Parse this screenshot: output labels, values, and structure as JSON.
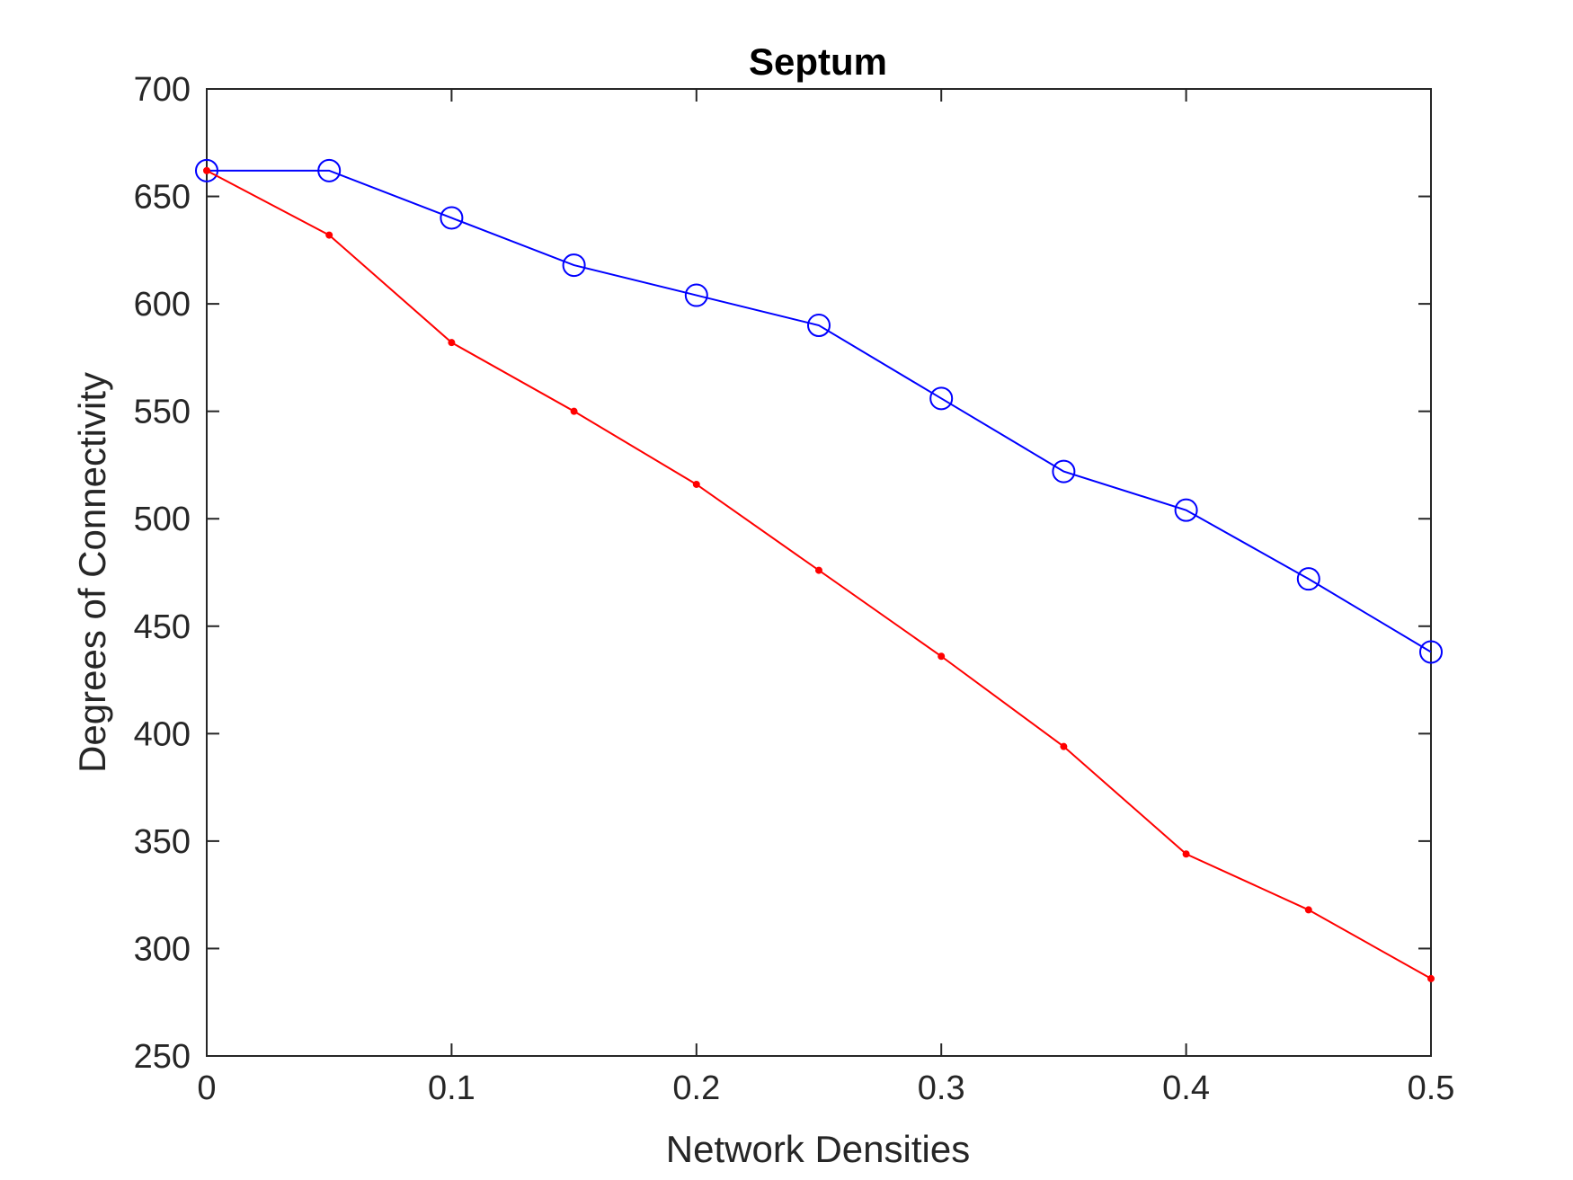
{
  "chart_data": {
    "type": "line",
    "title": "Septum",
    "xlabel": "Network Densities",
    "ylabel": "Degrees of Connectivity",
    "xlim": [
      0,
      0.5
    ],
    "ylim": [
      250,
      700
    ],
    "x_ticks": [
      0,
      0.1,
      0.2,
      0.3,
      0.4,
      0.5
    ],
    "x_tick_labels": [
      "0",
      "0.1",
      "0.2",
      "0.3",
      "0.4",
      "0.5"
    ],
    "y_ticks": [
      250,
      300,
      350,
      400,
      450,
      500,
      550,
      600,
      650,
      700
    ],
    "y_tick_labels": [
      "250",
      "300",
      "350",
      "400",
      "450",
      "500",
      "550",
      "600",
      "650",
      "700"
    ],
    "grid": false,
    "legend": false,
    "x": [
      0,
      0.05,
      0.1,
      0.15,
      0.2,
      0.25,
      0.3,
      0.35,
      0.4,
      0.45,
      0.5
    ],
    "series": [
      {
        "color": "#0000ff",
        "marker": "circle",
        "values": [
          662,
          662,
          640,
          618,
          604,
          590,
          556,
          522,
          504,
          472,
          438
        ]
      },
      {
        "color": "#ff0000",
        "marker": "dot",
        "values": [
          662,
          632,
          582,
          550,
          516,
          476,
          436,
          394,
          344,
          318,
          286
        ]
      }
    ]
  }
}
